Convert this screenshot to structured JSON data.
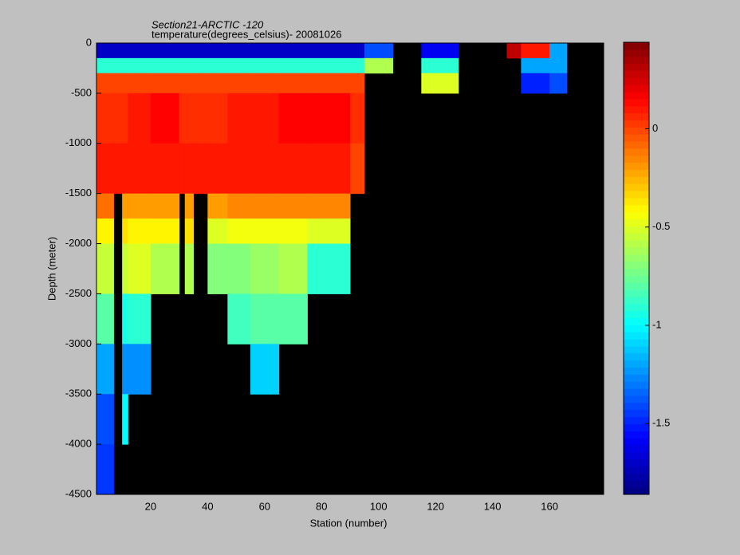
{
  "chart_data": {
    "type": "heatmap",
    "title": "Section21-ARCTIC  -120",
    "subtitle": "temperature(degrees_celsius)- 20081026",
    "x_label": "Station (number)",
    "y_label": "Depth (meter)",
    "colormap": "jet",
    "background": "#000000",
    "x_edges": [
      1,
      7,
      10,
      12,
      20,
      30,
      32,
      35,
      40,
      47,
      55,
      65,
      75,
      90,
      95,
      105,
      115,
      128,
      145,
      150,
      160,
      166,
      179
    ],
    "y_edges": [
      0,
      -150,
      -300,
      -500,
      -1000,
      -1500,
      -1750,
      -2000,
      -2500,
      -3000,
      -3500,
      -4000,
      -4500
    ],
    "z": [
      [
        -1.7,
        -1.7,
        -1.7,
        -1.7,
        -1.7,
        -1.7,
        -1.7,
        -1.7,
        -1.7,
        -1.7,
        -1.7,
        -1.7,
        -1.7,
        -1.7,
        -1.4,
        null,
        -1.6,
        null,
        0.3,
        0.1,
        -1.2,
        null
      ],
      [
        -0.9,
        -0.9,
        -0.9,
        -0.9,
        -0.9,
        -0.9,
        -0.9,
        -0.9,
        -0.9,
        -0.9,
        -0.9,
        -0.9,
        -0.9,
        -0.9,
        -0.6,
        null,
        -0.9,
        null,
        null,
        -1.2,
        -1.2,
        null
      ],
      [
        0.0,
        0.0,
        0.0,
        0.0,
        0.0,
        0.0,
        0.0,
        0.0,
        0.0,
        0.0,
        0.0,
        0.0,
        0.0,
        0.0,
        null,
        null,
        -0.5,
        null,
        null,
        -1.5,
        -1.4,
        null
      ],
      [
        0.05,
        0.05,
        0.05,
        0.1,
        0.15,
        0.05,
        0.05,
        0.05,
        0.05,
        0.1,
        0.1,
        0.15,
        0.15,
        0.05,
        null,
        null,
        null,
        null,
        null,
        null,
        null,
        null
      ],
      [
        0.1,
        0.1,
        0.1,
        0.1,
        0.1,
        0.1,
        0.1,
        0.1,
        0.1,
        0.1,
        0.1,
        0.1,
        0.1,
        0.0,
        null,
        null,
        null,
        null,
        null,
        null,
        null,
        null
      ],
      [
        -0.1,
        null,
        -0.2,
        -0.2,
        -0.2,
        null,
        -0.2,
        null,
        -0.2,
        -0.15,
        -0.15,
        -0.15,
        -0.15,
        null,
        null,
        null,
        null,
        null,
        null,
        null,
        null,
        null
      ],
      [
        -0.4,
        null,
        -0.35,
        -0.4,
        -0.4,
        null,
        -0.35,
        null,
        -0.5,
        -0.45,
        -0.45,
        -0.45,
        -0.5,
        null,
        null,
        null,
        null,
        null,
        null,
        null,
        null,
        null
      ],
      [
        -0.55,
        null,
        -0.55,
        -0.5,
        -0.6,
        null,
        -0.6,
        null,
        -0.7,
        -0.7,
        -0.65,
        -0.6,
        -0.9,
        null,
        null,
        null,
        null,
        null,
        null,
        null,
        null,
        null
      ],
      [
        -0.8,
        null,
        -0.95,
        -0.9,
        null,
        null,
        null,
        null,
        null,
        -0.85,
        -0.8,
        -0.8,
        null,
        null,
        null,
        null,
        null,
        null,
        null,
        null,
        null,
        null
      ],
      [
        -1.2,
        null,
        -1.25,
        -1.25,
        null,
        null,
        null,
        null,
        null,
        null,
        -1.1,
        null,
        null,
        null,
        null,
        null,
        null,
        null,
        null,
        null,
        null,
        null
      ],
      [
        -1.4,
        null,
        -1.0,
        null,
        null,
        null,
        null,
        null,
        null,
        null,
        null,
        null,
        null,
        null,
        null,
        null,
        null,
        null,
        null,
        null,
        null,
        null
      ],
      [
        -1.45,
        null,
        null,
        null,
        null,
        null,
        null,
        null,
        null,
        null,
        null,
        null,
        null,
        null,
        null,
        null,
        null,
        null,
        null,
        null,
        null,
        null
      ]
    ],
    "xlim": [
      1,
      179
    ],
    "xticks": [
      20,
      40,
      60,
      80,
      100,
      120,
      140,
      160
    ],
    "ylim": [
      -4500,
      0
    ],
    "yticks": [
      0,
      -500,
      -1000,
      -1500,
      -2000,
      -2500,
      -3000,
      -3500,
      -4000,
      -4500
    ],
    "clim": [
      -1.86,
      0.44
    ],
    "cticks": [
      0,
      -0.5,
      -1,
      -1.5
    ]
  }
}
